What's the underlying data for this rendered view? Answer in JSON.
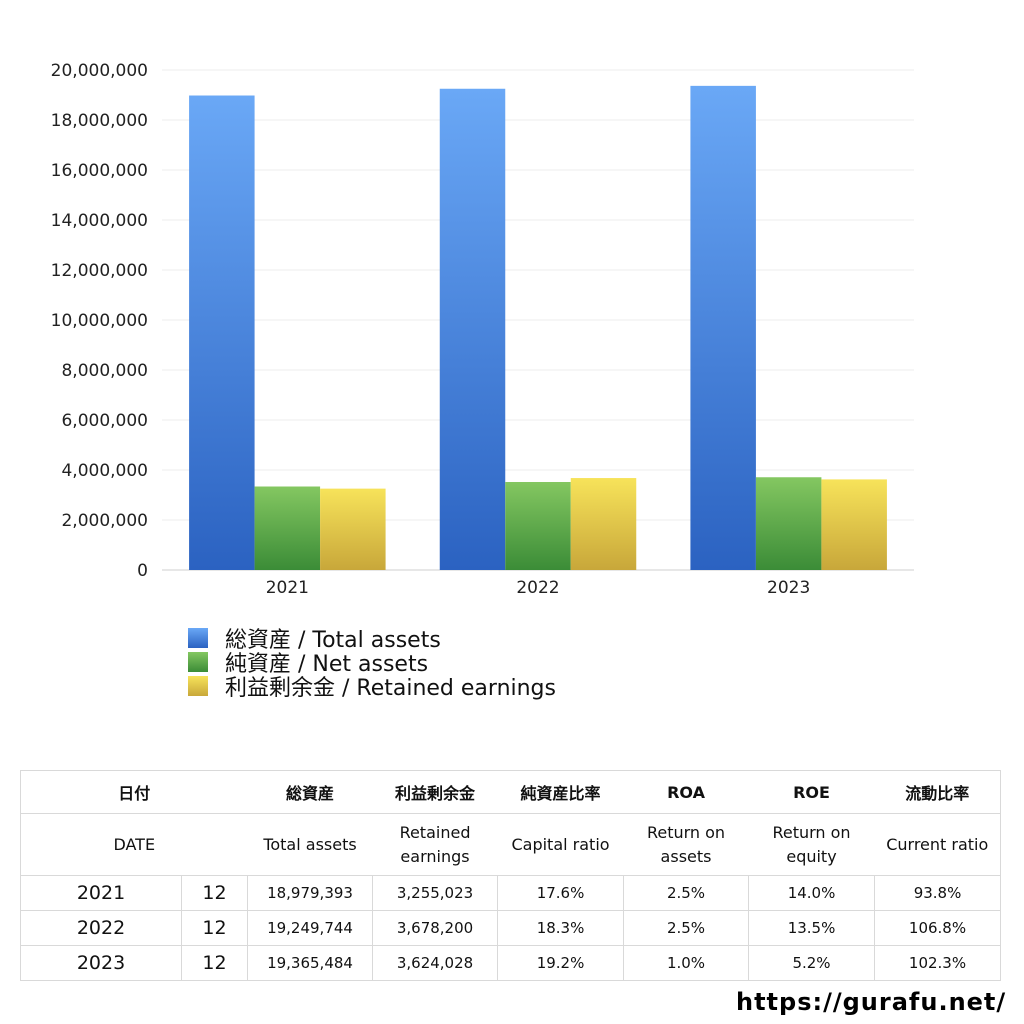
{
  "chart_data": {
    "type": "bar",
    "categories": [
      "2021",
      "2022",
      "2023"
    ],
    "series": [
      {
        "name": "総資産 / Total assets",
        "values": [
          18979393,
          19249744,
          19365484
        ],
        "color_top": "#6aa8f6",
        "color_bottom": "#2b62c1"
      },
      {
        "name": "純資産 / Net assets",
        "values": [
          3340000,
          3520000,
          3710000
        ],
        "color_top": "#84c761",
        "color_bottom": "#3b8c37"
      },
      {
        "name": "利益剰余金 / Retained earnings",
        "values": [
          3255023,
          3678200,
          3624028
        ],
        "color_top": "#f7e35a",
        "color_bottom": "#c8a73a"
      }
    ],
    "ylim": [
      0,
      20000000
    ],
    "yticks": [
      "0",
      "2,000,000",
      "4,000,000",
      "6,000,000",
      "8,000,000",
      "10,000,000",
      "12,000,000",
      "14,000,000",
      "16,000,000",
      "18,000,000",
      "20,000,000"
    ],
    "grid": true,
    "legend_position": "bottom-left"
  },
  "table": {
    "header_jp": {
      "date": "日付",
      "total_assets": "総資産",
      "retained": "利益剰余金",
      "capital_ratio": "純資産比率",
      "roa": "ROA",
      "roe": "ROE",
      "current_ratio": "流動比率"
    },
    "header_en": {
      "date": "DATE",
      "total_assets": "Total assets",
      "retained": "Retained earnings",
      "capital_ratio": "Capital ratio",
      "roa": "Return on assets",
      "roe": "Return on equity",
      "current_ratio": "Current ratio"
    },
    "rows": [
      {
        "year": "2021",
        "month": "12",
        "total_assets": "18,979,393",
        "retained": "3,255,023",
        "capital_ratio": "17.6%",
        "roa": "2.5%",
        "roe": "14.0%",
        "current_ratio": "93.8%"
      },
      {
        "year": "2022",
        "month": "12",
        "total_assets": "19,249,744",
        "retained": "3,678,200",
        "capital_ratio": "18.3%",
        "roa": "2.5%",
        "roe": "13.5%",
        "current_ratio": "106.8%"
      },
      {
        "year": "2023",
        "month": "12",
        "total_assets": "19,365,484",
        "retained": "3,624,028",
        "capital_ratio": "19.2%",
        "roa": "1.0%",
        "roe": "5.2%",
        "current_ratio": "102.3%"
      }
    ]
  },
  "site_url": "https://gurafu.net/"
}
